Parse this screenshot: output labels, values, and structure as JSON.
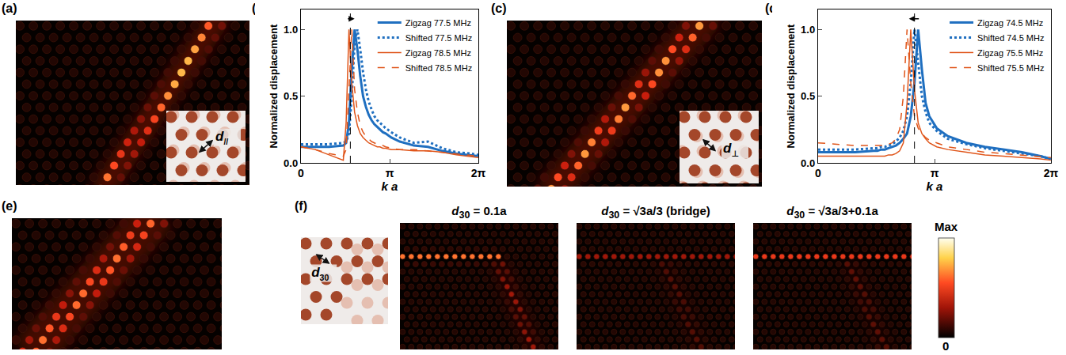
{
  "figure": {
    "panel_labels": [
      "(a)",
      "(b)",
      "(c)",
      "(d)",
      "(e)",
      "(f)"
    ],
    "insets": {
      "a": {
        "base": "d",
        "sub": "//"
      },
      "c": {
        "base": "d",
        "sub": "⊥"
      },
      "f": {
        "base": "d",
        "sub": "30"
      }
    },
    "f_titles": [
      {
        "base": "d",
        "sub": "30",
        "rest": " = 0.1a"
      },
      {
        "base": "d",
        "sub": "30",
        "rest": " = √3a/3 (bridge)"
      },
      {
        "base": "d",
        "sub": "30",
        "rest": " = √3a/3+0.1a"
      }
    ],
    "colorbar": {
      "top_label": "Max",
      "bottom_label": "0"
    }
  },
  "chart_data": [
    {
      "type": "line",
      "xlabel": "k a",
      "ylabel": "Normalized displacement",
      "xlim": [
        0,
        6.2832
      ],
      "xticks": [
        0,
        {
          "value": 3.1416,
          "label": "π"
        },
        {
          "value": 6.2832,
          "label": "2π"
        }
      ],
      "ylim": [
        0,
        1.15
      ],
      "yticks": [
        {
          "value": 0,
          "label": "0.0"
        },
        {
          "value": 0.5,
          "label": "0.5"
        },
        {
          "value": 1,
          "label": "1.0"
        }
      ],
      "legend": "top-right",
      "reference_x": 1.75,
      "arrow_x": [
        1.62,
        1.9
      ],
      "x": [
        0,
        0.5,
        1.0,
        1.5,
        1.6,
        1.7,
        1.8,
        1.9,
        2.0,
        2.1,
        2.2,
        2.3,
        2.4,
        2.5,
        2.6,
        2.7,
        2.8,
        2.9,
        3.0,
        3.2,
        3.5,
        4.0,
        4.5,
        5.0,
        5.5,
        6.0,
        6.28
      ],
      "series": [
        {
          "name": "Zigzag 77.5 MHz",
          "color": "#1f6fc0",
          "line_style": "solid",
          "values": [
            0.12,
            0.12,
            0.12,
            0.13,
            0.15,
            0.3,
            0.7,
            1.0,
            0.85,
            0.65,
            0.5,
            0.42,
            0.36,
            0.32,
            0.29,
            0.27,
            0.25,
            0.23,
            0.22,
            0.19,
            0.16,
            0.13,
            0.12,
            0.09,
            0.07,
            0.06,
            0.05
          ]
        },
        {
          "name": "Shifted 77.5 MHz",
          "color": "#1f6fc0",
          "line_style": "dotted",
          "values": [
            0.14,
            0.14,
            0.14,
            0.15,
            0.16,
            0.22,
            0.5,
            0.9,
            1.0,
            0.85,
            0.68,
            0.55,
            0.46,
            0.4,
            0.35,
            0.32,
            0.3,
            0.28,
            0.26,
            0.23,
            0.19,
            0.15,
            0.16,
            0.11,
            0.08,
            0.07,
            0.06
          ]
        },
        {
          "name": "Zigzag 78.5 MHz",
          "color": "#e0561b",
          "line_style": "solid",
          "values": [
            0.12,
            0.1,
            0.06,
            0.02,
            0.3,
            1.0,
            0.6,
            0.38,
            0.28,
            0.22,
            0.19,
            0.17,
            0.15,
            0.14,
            0.13,
            0.12,
            0.12,
            0.11,
            0.11,
            0.1,
            0.1,
            0.09,
            0.09,
            0.08,
            0.06,
            0.05,
            0.04
          ]
        },
        {
          "name": "Shifted 78.5 MHz",
          "color": "#e0561b",
          "line_style": "dashed",
          "values": [
            0.12,
            0.1,
            0.07,
            0.05,
            0.1,
            0.6,
            1.0,
            0.55,
            0.38,
            0.28,
            0.23,
            0.2,
            0.18,
            0.16,
            0.15,
            0.14,
            0.13,
            0.13,
            0.12,
            0.11,
            0.1,
            0.1,
            0.09,
            0.08,
            0.07,
            0.06,
            0.05
          ]
        }
      ]
    },
    {
      "type": "line",
      "xlabel": "k a",
      "ylabel": "Normalized displacement",
      "xlim": [
        0,
        6.2832
      ],
      "xticks": [
        0,
        {
          "value": 3.1416,
          "label": "π"
        },
        {
          "value": 6.2832,
          "label": "2π"
        }
      ],
      "ylim": [
        0,
        1.15
      ],
      "yticks": [
        {
          "value": 0,
          "label": "0.0"
        },
        {
          "value": 0.5,
          "label": "0.5"
        },
        {
          "value": 1,
          "label": "1.0"
        }
      ],
      "legend": "top-right",
      "reference_x": 2.6,
      "arrow_x": [
        2.75,
        2.45
      ],
      "x": [
        0,
        0.5,
        1.0,
        1.5,
        1.6,
        1.7,
        1.8,
        1.9,
        2.0,
        2.1,
        2.2,
        2.3,
        2.4,
        2.5,
        2.6,
        2.7,
        2.8,
        2.9,
        3.0,
        3.2,
        3.5,
        4.0,
        4.5,
        5.0,
        5.5,
        6.0,
        6.28
      ],
      "series": [
        {
          "name": "Zigzag 74.5 MHz",
          "color": "#1f6fc0",
          "line_style": "solid",
          "values": [
            0.08,
            0.08,
            0.08,
            0.09,
            0.09,
            0.1,
            0.1,
            0.11,
            0.12,
            0.13,
            0.15,
            0.18,
            0.22,
            0.35,
            0.6,
            1.0,
            0.7,
            0.45,
            0.35,
            0.26,
            0.2,
            0.15,
            0.12,
            0.1,
            0.08,
            0.05,
            0.03
          ]
        },
        {
          "name": "Shifted 74.5 MHz",
          "color": "#1f6fc0",
          "line_style": "dotted",
          "values": [
            0.1,
            0.1,
            0.1,
            0.11,
            0.11,
            0.12,
            0.12,
            0.13,
            0.14,
            0.16,
            0.19,
            0.24,
            0.35,
            0.6,
            1.0,
            0.75,
            0.5,
            0.38,
            0.3,
            0.24,
            0.18,
            0.14,
            0.11,
            0.09,
            0.07,
            0.05,
            0.03
          ]
        },
        {
          "name": "Zigzag 75.5 MHz",
          "color": "#e0561b",
          "line_style": "solid",
          "values": [
            0.05,
            0.05,
            0.05,
            0.05,
            0.05,
            0.05,
            0.05,
            0.06,
            0.06,
            0.07,
            0.09,
            0.15,
            0.45,
            1.0,
            0.55,
            0.3,
            0.22,
            0.18,
            0.15,
            0.12,
            0.1,
            0.08,
            0.06,
            0.05,
            0.04,
            0.03,
            0.02
          ]
        },
        {
          "name": "Shifted 75.5 MHz",
          "color": "#e0561b",
          "line_style": "dashed",
          "values": [
            0.15,
            0.14,
            0.13,
            0.13,
            0.13,
            0.13,
            0.13,
            0.14,
            0.15,
            0.18,
            0.25,
            0.5,
            1.0,
            0.6,
            0.35,
            0.26,
            0.22,
            0.19,
            0.17,
            0.15,
            0.12,
            0.1,
            0.08,
            0.07,
            0.06,
            0.05,
            0.04
          ]
        }
      ]
    }
  ]
}
